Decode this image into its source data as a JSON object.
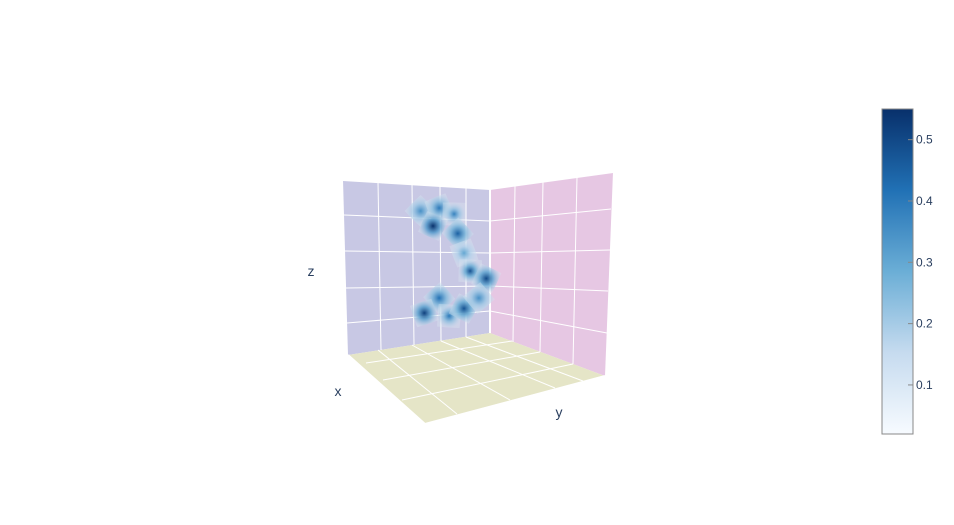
{
  "chart_data": {
    "type": "3d-volume",
    "scene": {
      "xaxis_title": "x",
      "yaxis_title": "y",
      "zaxis_title": "z",
      "background_colors": {
        "xy_floor": "#e5e5c7",
        "xz_wall": "#c8c8e4",
        "yz_wall": "#e6c7e3"
      }
    },
    "colorbar": {
      "colorscale": "Blues",
      "colors": [
        "#f7fbff",
        "#c6dbef",
        "#6baed6",
        "#2171b5",
        "#08306b"
      ],
      "min": 0.02,
      "max": 0.55,
      "ticks": [
        0.1,
        0.2,
        0.3,
        0.4,
        0.5
      ],
      "tick_labels": [
        "0.1",
        "0.2",
        "0.3",
        "0.4",
        "0.5"
      ]
    },
    "blobs": [
      {
        "u": 0.15,
        "v": 0.1,
        "value": 0.35
      },
      {
        "u": 0.3,
        "v": 0.08,
        "value": 0.4
      },
      {
        "u": 0.42,
        "v": 0.12,
        "value": 0.38
      },
      {
        "u": 0.25,
        "v": 0.2,
        "value": 0.55
      },
      {
        "u": 0.45,
        "v": 0.25,
        "value": 0.45
      },
      {
        "u": 0.5,
        "v": 0.38,
        "value": 0.3
      },
      {
        "u": 0.55,
        "v": 0.5,
        "value": 0.48
      },
      {
        "u": 0.68,
        "v": 0.55,
        "value": 0.5
      },
      {
        "u": 0.3,
        "v": 0.68,
        "value": 0.42
      },
      {
        "u": 0.18,
        "v": 0.78,
        "value": 0.52
      },
      {
        "u": 0.38,
        "v": 0.8,
        "value": 0.4
      },
      {
        "u": 0.5,
        "v": 0.75,
        "value": 0.48
      },
      {
        "u": 0.62,
        "v": 0.68,
        "value": 0.35
      }
    ]
  }
}
